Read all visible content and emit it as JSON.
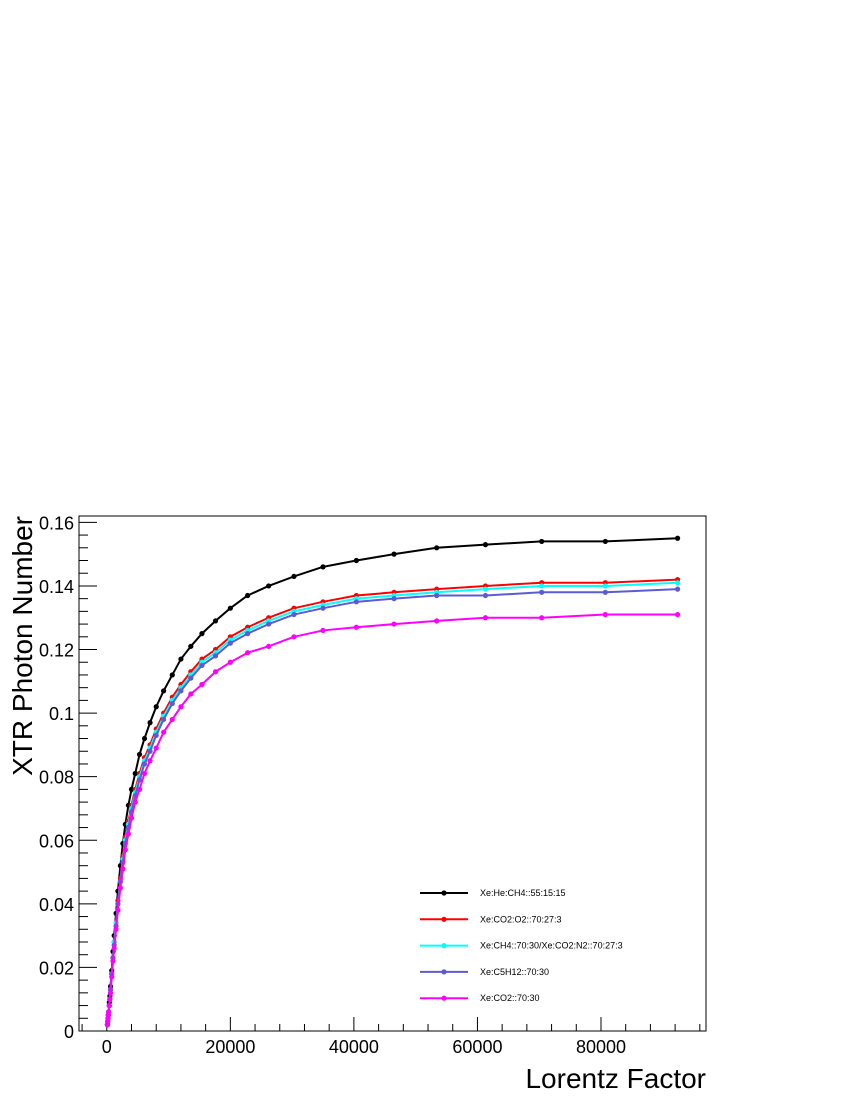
{
  "chart_data": {
    "type": "line",
    "title": "",
    "xlabel": "Lorentz Factor",
    "ylabel": "XTR Photon Number",
    "xlim": [
      -4500,
      97000
    ],
    "ylim": [
      0,
      0.162
    ],
    "xticks": [
      0,
      20000,
      40000,
      60000,
      80000
    ],
    "xtick_labels": [
      "0",
      "20000",
      "40000",
      "60000",
      "80000"
    ],
    "yticks": [
      0,
      0.02,
      0.04,
      0.06,
      0.08,
      0.1,
      0.12,
      0.14,
      0.16
    ],
    "ytick_labels": [
      "0",
      "0.02",
      "0.04",
      "0.06",
      "0.08",
      "0.1",
      "0.12",
      "0.14",
      "0.16"
    ],
    "grid": false,
    "legend_position": "bottom-right",
    "x": [
      100,
      150,
      200,
      250,
      300,
      400,
      500,
      600,
      800,
      1000,
      1200,
      1500,
      1800,
      2200,
      2600,
      3000,
      3500,
      4000,
      4600,
      5300,
      6100,
      7000,
      8000,
      9200,
      10600,
      12000,
      13600,
      15400,
      17600,
      20000,
      22800,
      26200,
      30300,
      35000,
      40400,
      46500,
      53400,
      61300,
      70400,
      80700,
      92400
    ],
    "series": [
      {
        "name": "Xe:He:CH4::55:15:15",
        "color": "#000000",
        "values": [
          0.002,
          0.003,
          0.004,
          0.005,
          0.006,
          0.009,
          0.011,
          0.014,
          0.019,
          0.025,
          0.03,
          0.037,
          0.044,
          0.052,
          0.059,
          0.065,
          0.071,
          0.076,
          0.081,
          0.087,
          0.092,
          0.097,
          0.102,
          0.107,
          0.112,
          0.117,
          0.121,
          0.125,
          0.129,
          0.133,
          0.137,
          0.14,
          0.143,
          0.146,
          0.148,
          0.15,
          0.152,
          0.153,
          0.154,
          0.154,
          0.155
        ]
      },
      {
        "name": "Xe:CO2:O2::70:27:3",
        "color": "#ff0000",
        "values": [
          0.002,
          0.003,
          0.004,
          0.005,
          0.006,
          0.008,
          0.01,
          0.013,
          0.018,
          0.023,
          0.028,
          0.034,
          0.041,
          0.048,
          0.055,
          0.061,
          0.066,
          0.071,
          0.076,
          0.081,
          0.086,
          0.09,
          0.095,
          0.1,
          0.105,
          0.109,
          0.113,
          0.117,
          0.12,
          0.124,
          0.127,
          0.13,
          0.133,
          0.135,
          0.137,
          0.138,
          0.139,
          0.14,
          0.141,
          0.141,
          0.142
        ]
      },
      {
        "name": "Xe:CH4::70:30/Xe:CO2:N2::70:27:3",
        "color": "#00ffff",
        "values": [
          0.002,
          0.003,
          0.004,
          0.005,
          0.006,
          0.008,
          0.01,
          0.013,
          0.018,
          0.023,
          0.028,
          0.034,
          0.04,
          0.047,
          0.054,
          0.06,
          0.065,
          0.07,
          0.075,
          0.08,
          0.085,
          0.089,
          0.094,
          0.099,
          0.104,
          0.108,
          0.112,
          0.116,
          0.119,
          0.123,
          0.126,
          0.129,
          0.132,
          0.134,
          0.136,
          0.137,
          0.138,
          0.139,
          0.14,
          0.14,
          0.141
        ]
      },
      {
        "name": "Xe:C5H12::70:30",
        "color": "#5b5bd6",
        "values": [
          0.002,
          0.003,
          0.004,
          0.005,
          0.006,
          0.008,
          0.01,
          0.013,
          0.018,
          0.023,
          0.027,
          0.033,
          0.04,
          0.047,
          0.053,
          0.059,
          0.064,
          0.069,
          0.074,
          0.079,
          0.084,
          0.088,
          0.093,
          0.098,
          0.103,
          0.107,
          0.111,
          0.115,
          0.118,
          0.122,
          0.125,
          0.128,
          0.131,
          0.133,
          0.135,
          0.136,
          0.137,
          0.137,
          0.138,
          0.138,
          0.139
        ]
      },
      {
        "name": "Xe:CO2::70:30",
        "color": "#ff00ff",
        "values": [
          0.002,
          0.003,
          0.004,
          0.005,
          0.006,
          0.008,
          0.01,
          0.012,
          0.017,
          0.022,
          0.026,
          0.032,
          0.038,
          0.045,
          0.051,
          0.057,
          0.062,
          0.067,
          0.072,
          0.076,
          0.081,
          0.085,
          0.089,
          0.094,
          0.098,
          0.102,
          0.106,
          0.109,
          0.113,
          0.116,
          0.119,
          0.121,
          0.124,
          0.126,
          0.127,
          0.128,
          0.129,
          0.13,
          0.13,
          0.131,
          0.131
        ]
      }
    ]
  }
}
